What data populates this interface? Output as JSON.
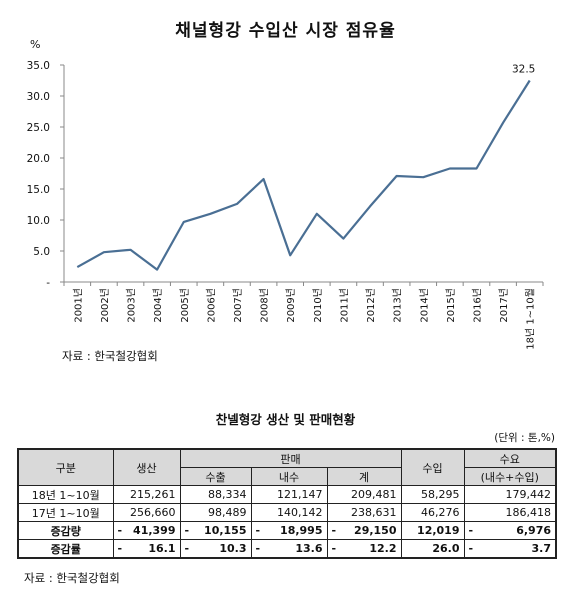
{
  "chart": {
    "title": "채널형강 수입산 시장 점유율"
  },
  "chart_data": {
    "type": "line",
    "title": "채널형강 수입산 시장 점유율",
    "ylabel": "%",
    "ylim": [
      0,
      35
    ],
    "yticks": [
      "-",
      "5.0",
      "10.0",
      "15.0",
      "20.0",
      "25.0",
      "30.0",
      "35.0"
    ],
    "categories": [
      "2001년",
      "2002년",
      "2003년",
      "2004년",
      "2005년",
      "2006년",
      "2007년",
      "2008년",
      "2009년",
      "2010년",
      "2011년",
      "2012년",
      "2013년",
      "2014년",
      "2015년",
      "2016년",
      "2017년",
      "18년 1~10월"
    ],
    "values": [
      2.4,
      4.8,
      5.2,
      2.0,
      9.7,
      11.0,
      12.6,
      16.6,
      4.3,
      11.0,
      7.0,
      12.2,
      17.1,
      16.9,
      18.3,
      18.3,
      25.7,
      32.5
    ],
    "annotations": [
      {
        "category": "18년 1~10월",
        "text": "32.5"
      }
    ],
    "color": "#4a6f94",
    "grid": false
  },
  "chart_source": "자료 : 한국철강협회",
  "table": {
    "title": "찬넬형강 생산 및 판매현황",
    "unit": "(단위 : 톤,%)",
    "headers": {
      "category": "구분",
      "production": "생산",
      "sales": "판매",
      "export": "수출",
      "domestic": "내수",
      "total": "계",
      "import": "수입",
      "demand": "수요",
      "demand_sub": "(내수+수입)"
    },
    "rows": [
      {
        "label": "18년 1~10월",
        "production": "215,261",
        "export": "88,334",
        "domestic": "121,147",
        "total": "209,481",
        "import": "58,295",
        "demand": "179,442"
      },
      {
        "label": "17년 1~10월",
        "production": "256,660",
        "export": "98,489",
        "domestic": "140,142",
        "total": "238,631",
        "import": "46,276",
        "demand": "186,418"
      },
      {
        "label": "증감량",
        "production": "41,399",
        "export": "10,155",
        "domestic": "18,995",
        "total": "29,150",
        "import": "12,019",
        "demand": "6,976"
      },
      {
        "label": "증감률",
        "production": "16.1",
        "export": "10.3",
        "domestic": "13.6",
        "total": "12.2",
        "import": "26.0",
        "demand": "3.7"
      }
    ],
    "neg_sign": "-",
    "source": "자료 : 한국철강협회"
  }
}
